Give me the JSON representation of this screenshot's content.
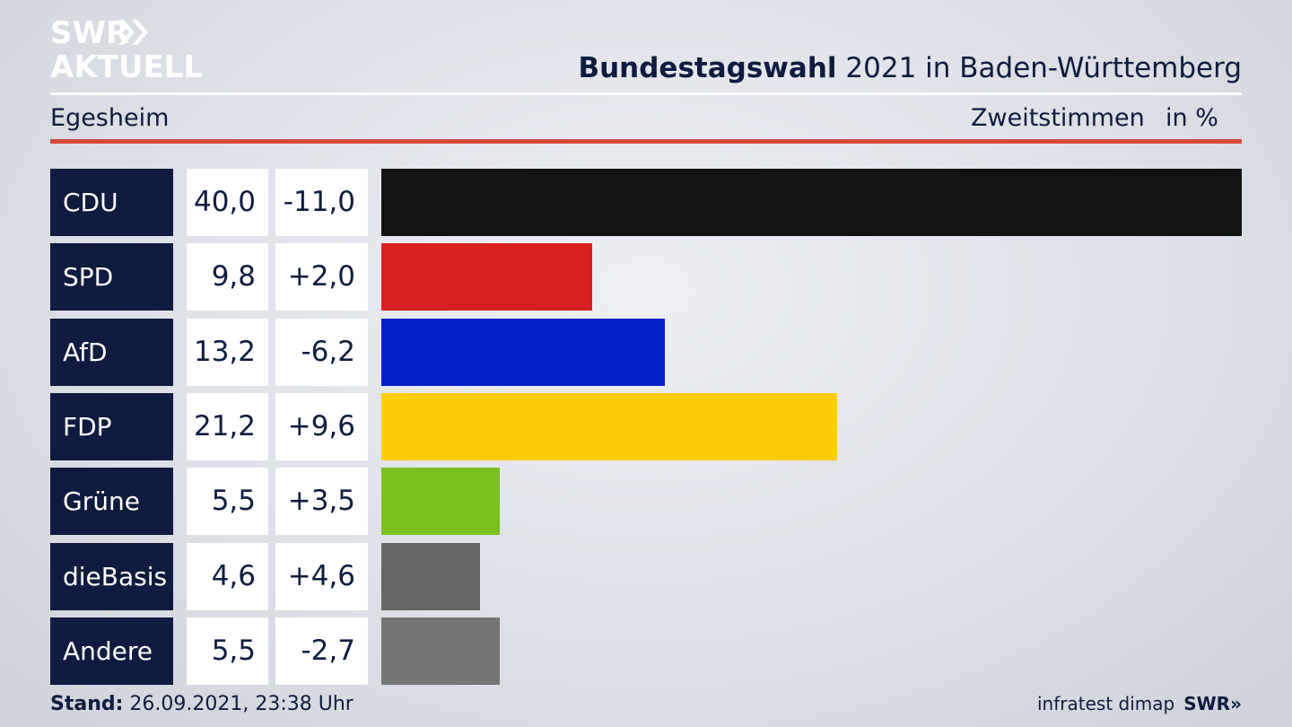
{
  "branding": {
    "logo_line1": "SWR",
    "logo_line2": "AKTUELL",
    "footer_source": "infratest dimap",
    "footer_logo": "SWR»"
  },
  "header": {
    "title_bold": "Bundestagswahl",
    "title_rest": " 2021 in Baden-Württemberg",
    "region": "Egesheim",
    "measure": "Zweitstimmen",
    "unit": "in %"
  },
  "colors": {
    "accent_red": "#d8483d",
    "navy": "#0f1c3f"
  },
  "chart_data": {
    "type": "bar",
    "orientation": "horizontal",
    "categories": [
      "CDU",
      "SPD",
      "AfD",
      "FDP",
      "Grüne",
      "dieBasis",
      "Andere"
    ],
    "values": [
      40.0,
      9.8,
      13.2,
      21.2,
      5.5,
      4.6,
      5.5
    ],
    "value_labels": [
      "40,0",
      "9,8",
      "13,2",
      "21,2",
      "5,5",
      "4,6",
      "5,5"
    ],
    "change_labels": [
      "-11,0",
      "+2,0",
      "-6,2",
      "+9,6",
      "+3,5",
      "+4,6",
      "-2,7"
    ],
    "changes": [
      -11.0,
      2.0,
      -6.2,
      9.6,
      3.5,
      4.6,
      -2.7
    ],
    "bar_colors": [
      "#121212",
      "#d8201e",
      "#0022c7",
      "#ffcc0a",
      "#7ac11f",
      "#666666",
      "#757575"
    ],
    "xlim": [
      0,
      40.0
    ],
    "grid": false,
    "legend": "none"
  },
  "footer": {
    "stand_label": "Stand:",
    "stand_value": " 26.09.2021, 23:38 Uhr"
  }
}
